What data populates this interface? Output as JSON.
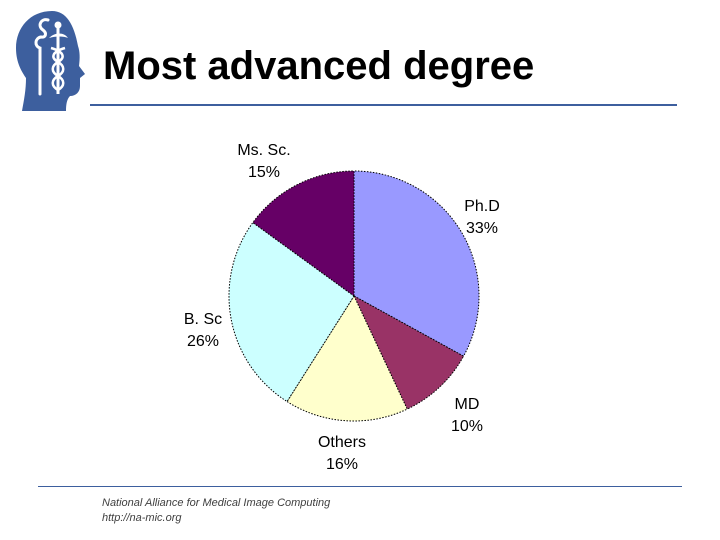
{
  "header": {
    "title": "Most advanced degree"
  },
  "logo": {
    "icon": "slicer-head-caduceus-icon",
    "color": "#3d5f9e"
  },
  "footer": {
    "line1": "National Alliance for Medical Image Computing",
    "line2": "http://na-mic.org"
  },
  "chart_data": {
    "type": "pie",
    "title": "",
    "slices": [
      {
        "label": "Ph.D",
        "value": 33,
        "value_label": "33%",
        "color": "#9999ff"
      },
      {
        "label": "MD",
        "value": 10,
        "value_label": "10%",
        "color": "#993366"
      },
      {
        "label": "Others",
        "value": 16,
        "value_label": "16%",
        "color": "#ffffcc"
      },
      {
        "label": "B. Sc",
        "value": 26,
        "value_label": "26%",
        "color": "#ccffff"
      },
      {
        "label": "Ms. Sc.",
        "value": 15,
        "value_label": "15%",
        "color": "#660066"
      }
    ],
    "start_angle_deg": 0,
    "direction": "clockwise",
    "legend": "none",
    "labels": "outside"
  }
}
